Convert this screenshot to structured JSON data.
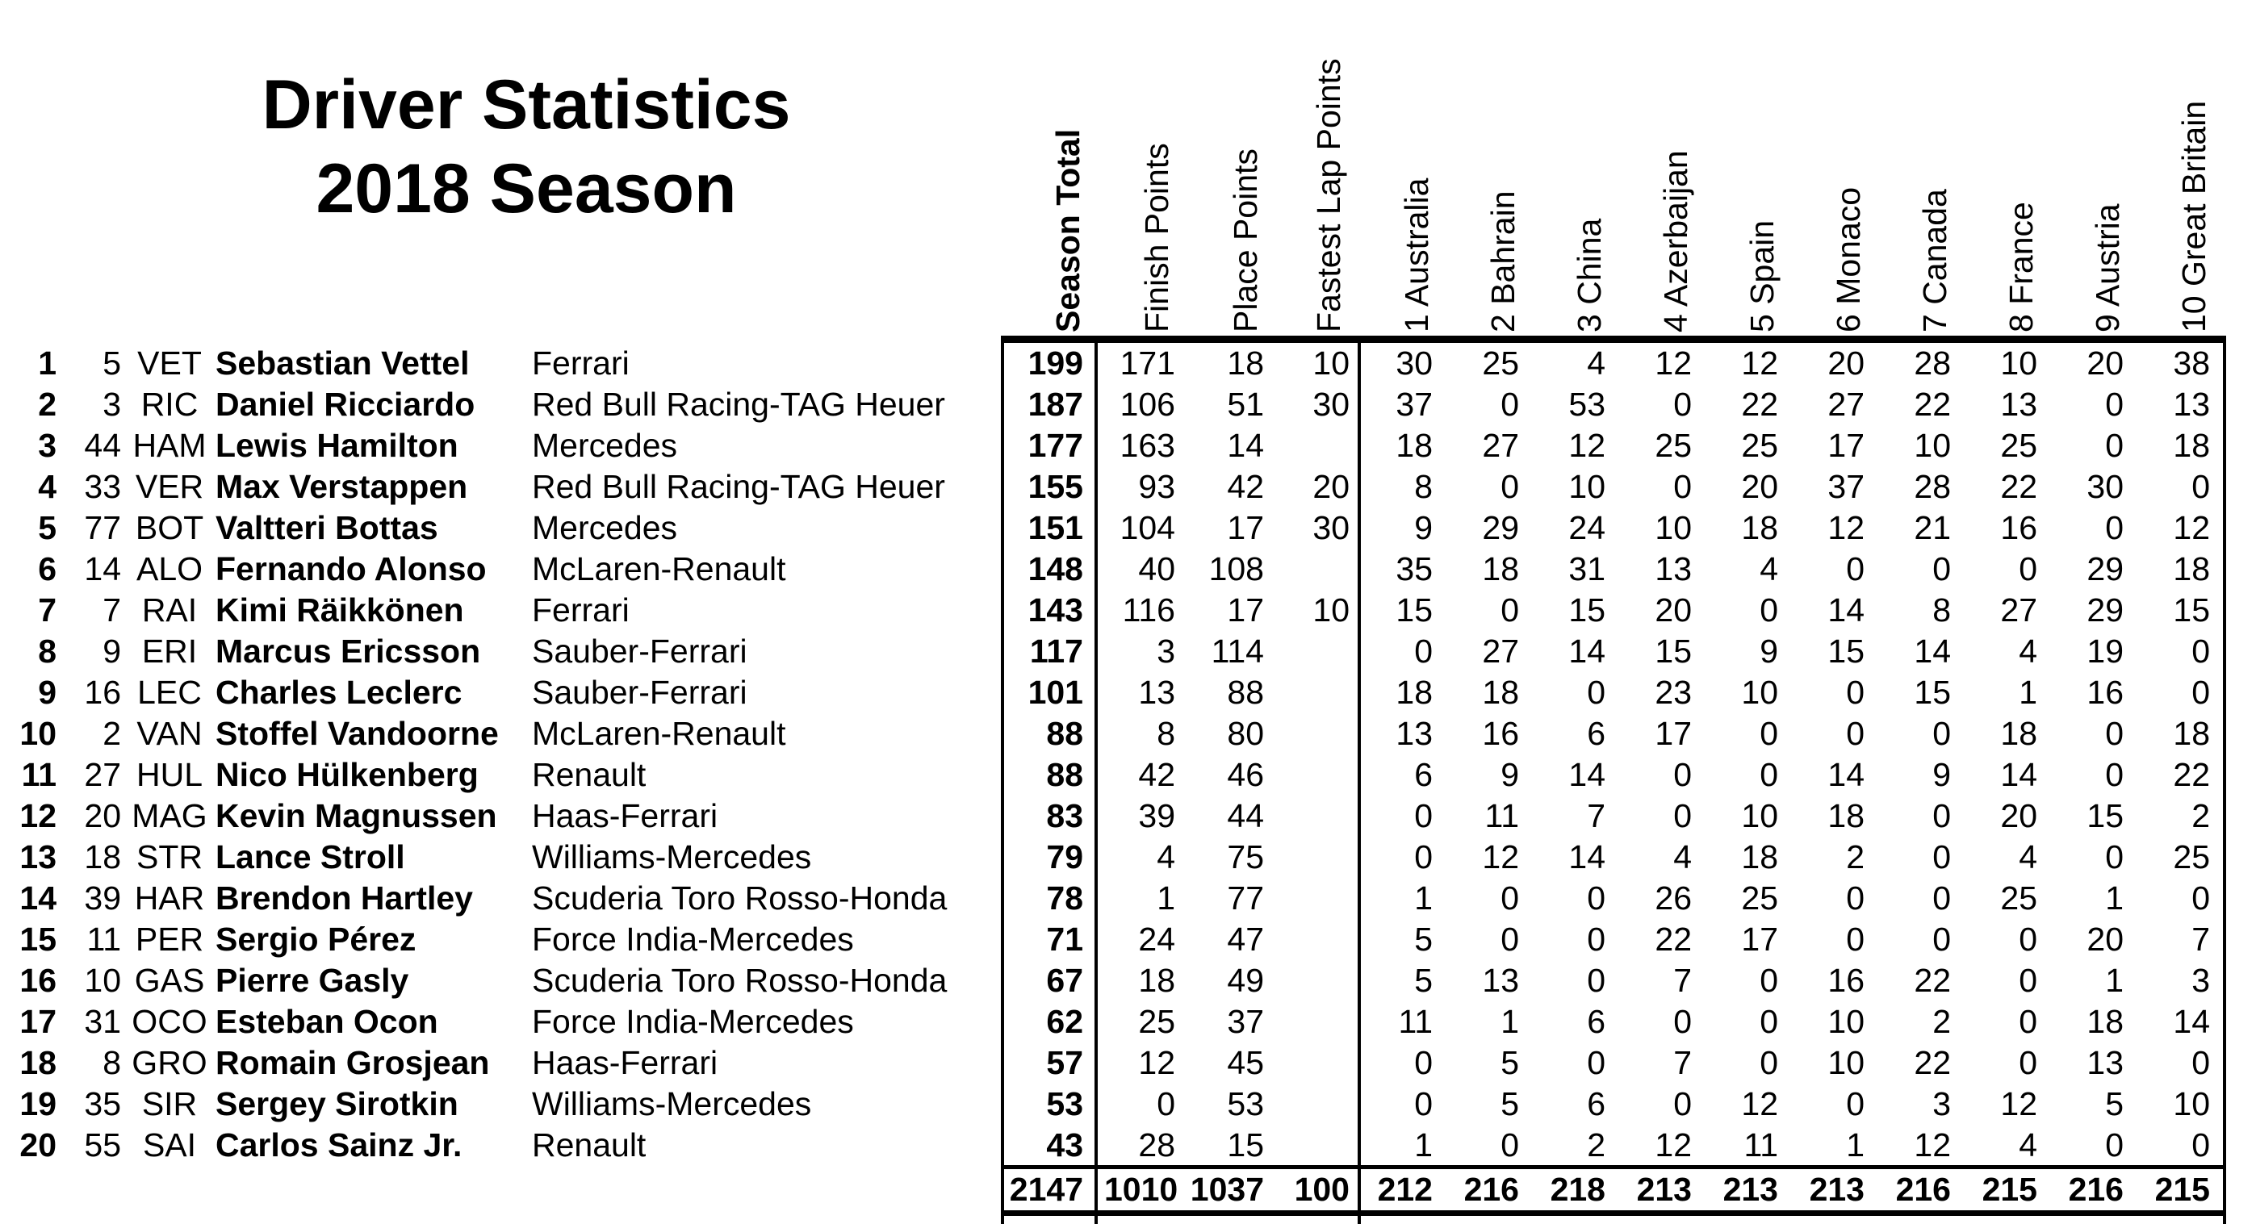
{
  "title": {
    "line1": "Driver Statistics",
    "line2": "2018 Season"
  },
  "colors": {
    "text": "#000000",
    "background": "#ffffff",
    "border": "#000000"
  },
  "columns": {
    "season_total": "Season Total",
    "points": [
      "Finish Points",
      "Place Points",
      "Fastest Lap Points"
    ],
    "races": [
      "1 Australia",
      "2 Bahrain",
      "3 China",
      "4 Azerbaijan",
      "5 Spain",
      "6 Monaco",
      "7 Canada",
      "8 France",
      "9 Austria",
      "10 Great Britain"
    ]
  },
  "table": {
    "rows": [
      {
        "pos": "1",
        "num": "5",
        "abbr": "VET",
        "name": "Sebastian Vettel",
        "team": "Ferrari",
        "season": "199",
        "finish": "171",
        "place": "18",
        "fastest": "10",
        "races": [
          "30",
          "25",
          "4",
          "12",
          "12",
          "20",
          "28",
          "10",
          "20",
          "38"
        ]
      },
      {
        "pos": "2",
        "num": "3",
        "abbr": "RIC",
        "name": "Daniel Ricciardo",
        "team": "Red Bull Racing-TAG Heuer",
        "season": "187",
        "finish": "106",
        "place": "51",
        "fastest": "30",
        "races": [
          "37",
          "0",
          "53",
          "0",
          "22",
          "27",
          "22",
          "13",
          "0",
          "13"
        ]
      },
      {
        "pos": "3",
        "num": "44",
        "abbr": "HAM",
        "name": "Lewis Hamilton",
        "team": "Mercedes",
        "season": "177",
        "finish": "163",
        "place": "14",
        "fastest": "",
        "races": [
          "18",
          "27",
          "12",
          "25",
          "25",
          "17",
          "10",
          "25",
          "0",
          "18"
        ]
      },
      {
        "pos": "4",
        "num": "33",
        "abbr": "VER",
        "name": "Max Verstappen",
        "team": "Red Bull Racing-TAG Heuer",
        "season": "155",
        "finish": "93",
        "place": "42",
        "fastest": "20",
        "races": [
          "8",
          "0",
          "10",
          "0",
          "20",
          "37",
          "28",
          "22",
          "30",
          "0"
        ]
      },
      {
        "pos": "5",
        "num": "77",
        "abbr": "BOT",
        "name": "Valtteri Bottas",
        "team": "Mercedes",
        "season": "151",
        "finish": "104",
        "place": "17",
        "fastest": "30",
        "races": [
          "9",
          "29",
          "24",
          "10",
          "18",
          "12",
          "21",
          "16",
          "0",
          "12"
        ]
      },
      {
        "pos": "6",
        "num": "14",
        "abbr": "ALO",
        "name": "Fernando Alonso",
        "team": "McLaren-Renault",
        "season": "148",
        "finish": "40",
        "place": "108",
        "fastest": "",
        "races": [
          "35",
          "18",
          "31",
          "13",
          "4",
          "0",
          "0",
          "0",
          "29",
          "18"
        ]
      },
      {
        "pos": "7",
        "num": "7",
        "abbr": "RAI",
        "name": "Kimi Räikkönen",
        "team": "Ferrari",
        "season": "143",
        "finish": "116",
        "place": "17",
        "fastest": "10",
        "races": [
          "15",
          "0",
          "15",
          "20",
          "0",
          "14",
          "8",
          "27",
          "29",
          "15"
        ]
      },
      {
        "pos": "8",
        "num": "9",
        "abbr": "ERI",
        "name": "Marcus Ericsson",
        "team": "Sauber-Ferrari",
        "season": "117",
        "finish": "3",
        "place": "114",
        "fastest": "",
        "races": [
          "0",
          "27",
          "14",
          "15",
          "9",
          "15",
          "14",
          "4",
          "19",
          "0"
        ]
      },
      {
        "pos": "9",
        "num": "16",
        "abbr": "LEC",
        "name": "Charles Leclerc",
        "team": "Sauber-Ferrari",
        "season": "101",
        "finish": "13",
        "place": "88",
        "fastest": "",
        "races": [
          "18",
          "18",
          "0",
          "23",
          "10",
          "0",
          "15",
          "1",
          "16",
          "0"
        ]
      },
      {
        "pos": "10",
        "num": "2",
        "abbr": "VAN",
        "name": "Stoffel Vandoorne",
        "team": "McLaren-Renault",
        "season": "88",
        "finish": "8",
        "place": "80",
        "fastest": "",
        "races": [
          "13",
          "16",
          "6",
          "17",
          "0",
          "0",
          "0",
          "18",
          "0",
          "18"
        ]
      },
      {
        "pos": "11",
        "num": "27",
        "abbr": "HUL",
        "name": "Nico Hülkenberg",
        "team": "Renault",
        "season": "88",
        "finish": "42",
        "place": "46",
        "fastest": "",
        "races": [
          "6",
          "9",
          "14",
          "0",
          "0",
          "14",
          "9",
          "14",
          "0",
          "22"
        ]
      },
      {
        "pos": "12",
        "num": "20",
        "abbr": "MAG",
        "name": "Kevin Magnussen",
        "team": "Haas-Ferrari",
        "season": "83",
        "finish": "39",
        "place": "44",
        "fastest": "",
        "races": [
          "0",
          "11",
          "7",
          "0",
          "10",
          "18",
          "0",
          "20",
          "15",
          "2"
        ]
      },
      {
        "pos": "13",
        "num": "18",
        "abbr": "STR",
        "name": "Lance Stroll",
        "team": "Williams-Mercedes",
        "season": "79",
        "finish": "4",
        "place": "75",
        "fastest": "",
        "races": [
          "0",
          "12",
          "14",
          "4",
          "18",
          "2",
          "0",
          "4",
          "0",
          "25"
        ]
      },
      {
        "pos": "14",
        "num": "39",
        "abbr": "HAR",
        "name": "Brendon Hartley",
        "team": "Scuderia Toro Rosso-Honda",
        "season": "78",
        "finish": "1",
        "place": "77",
        "fastest": "",
        "races": [
          "1",
          "0",
          "0",
          "26",
          "25",
          "0",
          "0",
          "25",
          "1",
          "0"
        ]
      },
      {
        "pos": "15",
        "num": "11",
        "abbr": "PER",
        "name": "Sergio Pérez",
        "team": "Force India-Mercedes",
        "season": "71",
        "finish": "24",
        "place": "47",
        "fastest": "",
        "races": [
          "5",
          "0",
          "0",
          "22",
          "17",
          "0",
          "0",
          "0",
          "20",
          "7"
        ]
      },
      {
        "pos": "16",
        "num": "10",
        "abbr": "GAS",
        "name": "Pierre Gasly",
        "team": "Scuderia Toro Rosso-Honda",
        "season": "67",
        "finish": "18",
        "place": "49",
        "fastest": "",
        "races": [
          "5",
          "13",
          "0",
          "7",
          "0",
          "16",
          "22",
          "0",
          "1",
          "3"
        ]
      },
      {
        "pos": "17",
        "num": "31",
        "abbr": "OCO",
        "name": "Esteban Ocon",
        "team": "Force India-Mercedes",
        "season": "62",
        "finish": "25",
        "place": "37",
        "fastest": "",
        "races": [
          "11",
          "1",
          "6",
          "0",
          "0",
          "10",
          "2",
          "0",
          "18",
          "14"
        ]
      },
      {
        "pos": "18",
        "num": "8",
        "abbr": "GRO",
        "name": "Romain Grosjean",
        "team": "Haas-Ferrari",
        "season": "57",
        "finish": "12",
        "place": "45",
        "fastest": "",
        "races": [
          "0",
          "5",
          "0",
          "7",
          "0",
          "10",
          "22",
          "0",
          "13",
          "0"
        ]
      },
      {
        "pos": "19",
        "num": "35",
        "abbr": "SIR",
        "name": "Sergey Sirotkin",
        "team": "Williams-Mercedes",
        "season": "53",
        "finish": "0",
        "place": "53",
        "fastest": "",
        "races": [
          "0",
          "5",
          "6",
          "0",
          "12",
          "0",
          "3",
          "12",
          "5",
          "10"
        ]
      },
      {
        "pos": "20",
        "num": "55",
        "abbr": "SAI",
        "name": "Carlos Sainz Jr.",
        "team": "Renault",
        "season": "43",
        "finish": "28",
        "place": "15",
        "fastest": "",
        "races": [
          "1",
          "0",
          "2",
          "12",
          "11",
          "1",
          "12",
          "4",
          "0",
          "0"
        ]
      }
    ],
    "totals": {
      "season": "2147",
      "finish": "1010",
      "place": "1037",
      "fastest": "100",
      "races": [
        "212",
        "216",
        "218",
        "213",
        "213",
        "213",
        "216",
        "215",
        "216",
        "215"
      ]
    }
  }
}
